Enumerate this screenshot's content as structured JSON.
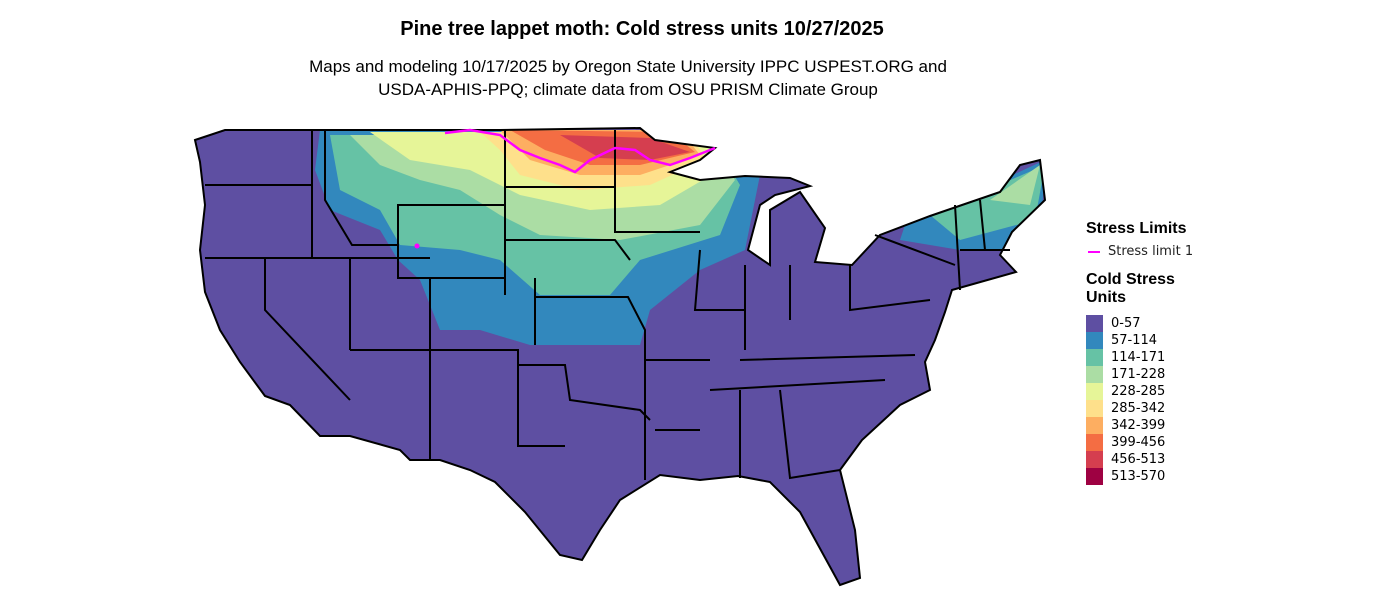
{
  "title": "Pine tree lappet moth: Cold stress units 10/27/2025",
  "subtitle_line1": "Maps and modeling 10/17/2025 by Oregon State University IPPC USPEST.ORG and",
  "subtitle_line2": "USDA-APHIS-PPQ; climate data from OSU PRISM Climate Group",
  "legend": {
    "stress_limits_title": "Stress Limits",
    "stress_limit_label": "Stress limit 1",
    "stress_limit_color": "#ff00ff",
    "units_title_line1": "Cold Stress",
    "units_title_line2": "Units",
    "bins": [
      {
        "label": "0-57",
        "color": "#5e4fa2"
      },
      {
        "label": "57-114",
        "color": "#3288bd"
      },
      {
        "label": "114-171",
        "color": "#66c2a5"
      },
      {
        "label": "171-228",
        "color": "#abdda4"
      },
      {
        "label": "228-285",
        "color": "#e6f598"
      },
      {
        "label": "285-342",
        "color": "#fee08b"
      },
      {
        "label": "342-399",
        "color": "#fdae61"
      },
      {
        "label": "399-456",
        "color": "#f46d43"
      },
      {
        "label": "456-513",
        "color": "#d53e4f"
      },
      {
        "label": "513-570",
        "color": "#9e0142"
      }
    ]
  }
}
